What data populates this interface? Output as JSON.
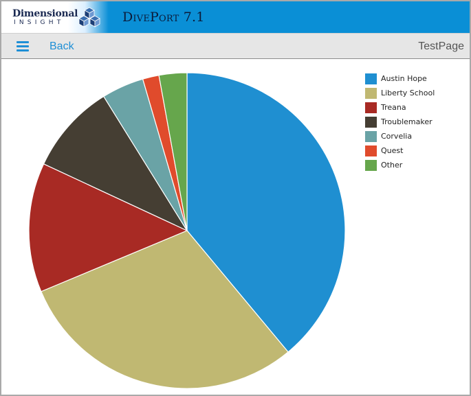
{
  "header": {
    "logo_text": "Dimensional",
    "logo_subtext": "INSIGHT",
    "app_title": "DivePort 7.1"
  },
  "nav": {
    "menu_icon": "hamburger-menu-icon",
    "back_label": "Back",
    "page_name": "TestPage"
  },
  "colors": {
    "topbar": "#0a8fd6",
    "accent": "#1e8fd6"
  },
  "chart_data": {
    "type": "pie",
    "title": "",
    "start_angle": "12 o'clock",
    "direction": "clockwise",
    "legend_position": "top-right",
    "slices": [
      {
        "label": "Austin Hope",
        "value": 39.7,
        "color": "#1f8fd1"
      },
      {
        "label": "Liberty School",
        "value": 30.3,
        "color": "#c0b872"
      },
      {
        "label": "Treana",
        "value": 13.5,
        "color": "#a82a24"
      },
      {
        "label": "Troublemaker",
        "value": 9.4,
        "color": "#453e33"
      },
      {
        "label": "Corvelia",
        "value": 4.4,
        "color": "#6aa3a6"
      },
      {
        "label": "Quest",
        "value": 1.7,
        "color": "#e04b2c"
      },
      {
        "label": "Other",
        "value": 2.9,
        "color": "#66a64c"
      }
    ]
  }
}
